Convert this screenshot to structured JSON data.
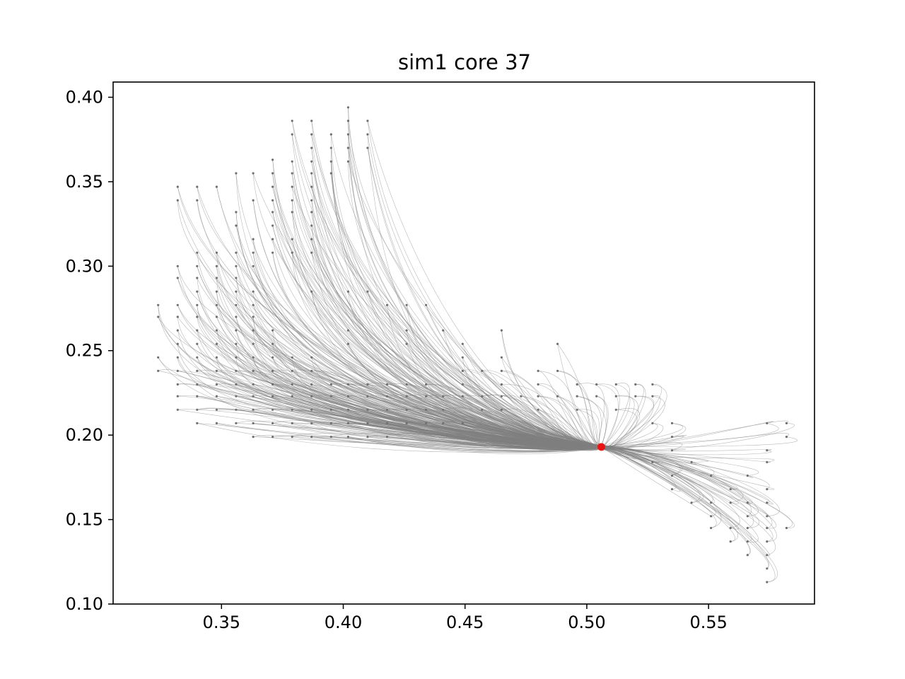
{
  "chart_data": {
    "type": "scatter",
    "title": "sim1 core 37",
    "xlabel": "",
    "ylabel": "",
    "xlim": [
      0.3055,
      0.5935
    ],
    "ylim": [
      0.1,
      0.409
    ],
    "xticks": [
      "0.35",
      "0.40",
      "0.45",
      "0.50",
      "0.55"
    ],
    "yticks": [
      "0.10",
      "0.15",
      "0.20",
      "0.25",
      "0.30",
      "0.35",
      "0.40"
    ],
    "grid": false,
    "colors": {
      "trajectories": "#808080",
      "start_points": "#707070",
      "end_cluster": "#ee1111"
    },
    "end_cluster": {
      "x": 0.506,
      "y": 0.193
    },
    "series": [
      {
        "kind": "start-points",
        "points": [
          [
            0.402,
            0.394
          ],
          [
            0.379,
            0.386
          ],
          [
            0.387,
            0.386
          ],
          [
            0.402,
            0.386
          ],
          [
            0.41,
            0.386
          ],
          [
            0.379,
            0.378
          ],
          [
            0.387,
            0.378
          ],
          [
            0.395,
            0.378
          ],
          [
            0.402,
            0.378
          ],
          [
            0.41,
            0.378
          ],
          [
            0.387,
            0.37
          ],
          [
            0.395,
            0.37
          ],
          [
            0.402,
            0.37
          ],
          [
            0.41,
            0.37
          ],
          [
            0.379,
            0.362
          ],
          [
            0.387,
            0.362
          ],
          [
            0.395,
            0.362
          ],
          [
            0.402,
            0.362
          ],
          [
            0.371,
            0.363
          ],
          [
            0.356,
            0.355
          ],
          [
            0.363,
            0.355
          ],
          [
            0.371,
            0.355
          ],
          [
            0.379,
            0.355
          ],
          [
            0.387,
            0.355
          ],
          [
            0.395,
            0.355
          ],
          [
            0.332,
            0.347
          ],
          [
            0.34,
            0.347
          ],
          [
            0.348,
            0.347
          ],
          [
            0.371,
            0.347
          ],
          [
            0.379,
            0.347
          ],
          [
            0.387,
            0.347
          ],
          [
            0.332,
            0.339
          ],
          [
            0.34,
            0.339
          ],
          [
            0.363,
            0.339
          ],
          [
            0.371,
            0.339
          ],
          [
            0.379,
            0.339
          ],
          [
            0.387,
            0.339
          ],
          [
            0.356,
            0.332
          ],
          [
            0.371,
            0.332
          ],
          [
            0.379,
            0.332
          ],
          [
            0.387,
            0.332
          ],
          [
            0.356,
            0.324
          ],
          [
            0.371,
            0.324
          ],
          [
            0.387,
            0.324
          ],
          [
            0.363,
            0.316
          ],
          [
            0.371,
            0.316
          ],
          [
            0.379,
            0.316
          ],
          [
            0.387,
            0.316
          ],
          [
            0.356,
            0.308
          ],
          [
            0.363,
            0.308
          ],
          [
            0.371,
            0.308
          ],
          [
            0.379,
            0.308
          ],
          [
            0.387,
            0.308
          ],
          [
            0.34,
            0.308
          ],
          [
            0.348,
            0.308
          ],
          [
            0.356,
            0.3
          ],
          [
            0.363,
            0.3
          ],
          [
            0.332,
            0.3
          ],
          [
            0.34,
            0.3
          ],
          [
            0.348,
            0.3
          ],
          [
            0.332,
            0.293
          ],
          [
            0.34,
            0.293
          ],
          [
            0.348,
            0.293
          ],
          [
            0.356,
            0.293
          ],
          [
            0.34,
            0.285
          ],
          [
            0.348,
            0.285
          ],
          [
            0.356,
            0.285
          ],
          [
            0.363,
            0.285
          ],
          [
            0.387,
            0.285
          ],
          [
            0.402,
            0.285
          ],
          [
            0.41,
            0.285
          ],
          [
            0.324,
            0.277
          ],
          [
            0.332,
            0.277
          ],
          [
            0.34,
            0.277
          ],
          [
            0.348,
            0.277
          ],
          [
            0.356,
            0.277
          ],
          [
            0.363,
            0.277
          ],
          [
            0.418,
            0.277
          ],
          [
            0.426,
            0.277
          ],
          [
            0.434,
            0.277
          ],
          [
            0.324,
            0.27
          ],
          [
            0.332,
            0.27
          ],
          [
            0.34,
            0.27
          ],
          [
            0.348,
            0.27
          ],
          [
            0.356,
            0.27
          ],
          [
            0.363,
            0.27
          ],
          [
            0.332,
            0.262
          ],
          [
            0.34,
            0.262
          ],
          [
            0.348,
            0.262
          ],
          [
            0.356,
            0.262
          ],
          [
            0.363,
            0.262
          ],
          [
            0.371,
            0.262
          ],
          [
            0.402,
            0.262
          ],
          [
            0.426,
            0.262
          ],
          [
            0.441,
            0.262
          ],
          [
            0.465,
            0.262
          ],
          [
            0.332,
            0.254
          ],
          [
            0.34,
            0.254
          ],
          [
            0.348,
            0.254
          ],
          [
            0.356,
            0.254
          ],
          [
            0.363,
            0.254
          ],
          [
            0.371,
            0.254
          ],
          [
            0.402,
            0.254
          ],
          [
            0.426,
            0.254
          ],
          [
            0.449,
            0.254
          ],
          [
            0.488,
            0.254
          ],
          [
            0.324,
            0.246
          ],
          [
            0.332,
            0.246
          ],
          [
            0.34,
            0.246
          ],
          [
            0.348,
            0.246
          ],
          [
            0.356,
            0.246
          ],
          [
            0.363,
            0.246
          ],
          [
            0.371,
            0.246
          ],
          [
            0.379,
            0.246
          ],
          [
            0.387,
            0.246
          ],
          [
            0.449,
            0.246
          ],
          [
            0.465,
            0.246
          ],
          [
            0.324,
            0.238
          ],
          [
            0.332,
            0.238
          ],
          [
            0.34,
            0.238
          ],
          [
            0.348,
            0.238
          ],
          [
            0.356,
            0.238
          ],
          [
            0.363,
            0.238
          ],
          [
            0.371,
            0.238
          ],
          [
            0.379,
            0.238
          ],
          [
            0.387,
            0.238
          ],
          [
            0.449,
            0.238
          ],
          [
            0.457,
            0.238
          ],
          [
            0.465,
            0.238
          ],
          [
            0.48,
            0.238
          ],
          [
            0.488,
            0.238
          ],
          [
            0.332,
            0.23
          ],
          [
            0.34,
            0.23
          ],
          [
            0.348,
            0.23
          ],
          [
            0.356,
            0.23
          ],
          [
            0.363,
            0.23
          ],
          [
            0.371,
            0.23
          ],
          [
            0.379,
            0.23
          ],
          [
            0.387,
            0.23
          ],
          [
            0.395,
            0.23
          ],
          [
            0.402,
            0.23
          ],
          [
            0.41,
            0.23
          ],
          [
            0.418,
            0.23
          ],
          [
            0.426,
            0.23
          ],
          [
            0.434,
            0.23
          ],
          [
            0.449,
            0.23
          ],
          [
            0.465,
            0.23
          ],
          [
            0.48,
            0.23
          ],
          [
            0.496,
            0.23
          ],
          [
            0.504,
            0.23
          ],
          [
            0.512,
            0.23
          ],
          [
            0.52,
            0.23
          ],
          [
            0.527,
            0.23
          ],
          [
            0.332,
            0.223
          ],
          [
            0.34,
            0.223
          ],
          [
            0.348,
            0.223
          ],
          [
            0.356,
            0.223
          ],
          [
            0.363,
            0.223
          ],
          [
            0.371,
            0.223
          ],
          [
            0.379,
            0.223
          ],
          [
            0.387,
            0.223
          ],
          [
            0.395,
            0.223
          ],
          [
            0.402,
            0.223
          ],
          [
            0.41,
            0.223
          ],
          [
            0.418,
            0.223
          ],
          [
            0.426,
            0.223
          ],
          [
            0.434,
            0.223
          ],
          [
            0.441,
            0.223
          ],
          [
            0.449,
            0.223
          ],
          [
            0.457,
            0.223
          ],
          [
            0.465,
            0.223
          ],
          [
            0.473,
            0.223
          ],
          [
            0.48,
            0.223
          ],
          [
            0.488,
            0.223
          ],
          [
            0.496,
            0.223
          ],
          [
            0.504,
            0.223
          ],
          [
            0.512,
            0.223
          ],
          [
            0.52,
            0.223
          ],
          [
            0.527,
            0.223
          ],
          [
            0.332,
            0.215
          ],
          [
            0.34,
            0.215
          ],
          [
            0.348,
            0.215
          ],
          [
            0.356,
            0.215
          ],
          [
            0.363,
            0.215
          ],
          [
            0.371,
            0.215
          ],
          [
            0.379,
            0.215
          ],
          [
            0.387,
            0.215
          ],
          [
            0.395,
            0.215
          ],
          [
            0.402,
            0.215
          ],
          [
            0.41,
            0.215
          ],
          [
            0.418,
            0.215
          ],
          [
            0.426,
            0.215
          ],
          [
            0.434,
            0.215
          ],
          [
            0.441,
            0.215
          ],
          [
            0.457,
            0.215
          ],
          [
            0.465,
            0.215
          ],
          [
            0.48,
            0.215
          ],
          [
            0.496,
            0.215
          ],
          [
            0.512,
            0.215
          ],
          [
            0.34,
            0.207
          ],
          [
            0.348,
            0.207
          ],
          [
            0.356,
            0.207
          ],
          [
            0.363,
            0.207
          ],
          [
            0.371,
            0.207
          ],
          [
            0.379,
            0.207
          ],
          [
            0.387,
            0.207
          ],
          [
            0.395,
            0.207
          ],
          [
            0.402,
            0.207
          ],
          [
            0.41,
            0.207
          ],
          [
            0.418,
            0.207
          ],
          [
            0.426,
            0.207
          ],
          [
            0.434,
            0.207
          ],
          [
            0.441,
            0.207
          ],
          [
            0.449,
            0.207
          ],
          [
            0.527,
            0.207
          ],
          [
            0.535,
            0.207
          ],
          [
            0.363,
            0.199
          ],
          [
            0.371,
            0.199
          ],
          [
            0.379,
            0.199
          ],
          [
            0.387,
            0.199
          ],
          [
            0.395,
            0.199
          ],
          [
            0.402,
            0.199
          ],
          [
            0.41,
            0.199
          ],
          [
            0.418,
            0.199
          ],
          [
            0.535,
            0.199
          ],
          [
            0.574,
            0.207
          ],
          [
            0.582,
            0.207
          ],
          [
            0.582,
            0.199
          ],
          [
            0.535,
            0.191
          ],
          [
            0.574,
            0.191
          ],
          [
            0.527,
            0.184
          ],
          [
            0.543,
            0.184
          ],
          [
            0.574,
            0.184
          ],
          [
            0.535,
            0.176
          ],
          [
            0.551,
            0.176
          ],
          [
            0.566,
            0.176
          ],
          [
            0.535,
            0.168
          ],
          [
            0.559,
            0.168
          ],
          [
            0.574,
            0.168
          ],
          [
            0.543,
            0.16
          ],
          [
            0.551,
            0.16
          ],
          [
            0.559,
            0.16
          ],
          [
            0.566,
            0.16
          ],
          [
            0.574,
            0.16
          ],
          [
            0.551,
            0.152
          ],
          [
            0.566,
            0.152
          ],
          [
            0.574,
            0.152
          ],
          [
            0.551,
            0.145
          ],
          [
            0.559,
            0.145
          ],
          [
            0.566,
            0.145
          ],
          [
            0.574,
            0.145
          ],
          [
            0.582,
            0.145
          ],
          [
            0.559,
            0.137
          ],
          [
            0.566,
            0.137
          ],
          [
            0.574,
            0.137
          ],
          [
            0.566,
            0.129
          ],
          [
            0.574,
            0.129
          ],
          [
            0.574,
            0.121
          ],
          [
            0.574,
            0.113
          ]
        ]
      }
    ]
  }
}
